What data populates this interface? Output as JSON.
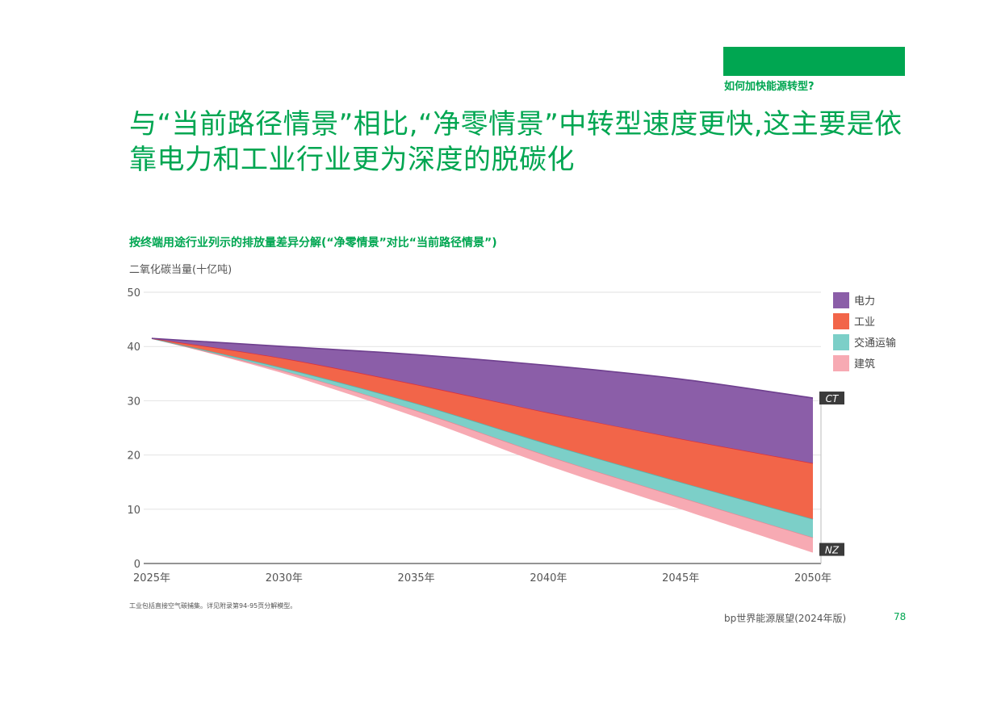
{
  "header": {
    "section_label": "如何加快能源转型?",
    "accent_color": "#00a651"
  },
  "headline": "与“当前路径情景”相比,“净零情景”中转型速度更快,这主要是依靠电力和工业行业更为深度的脱碳化",
  "chart_data": {
    "type": "area",
    "title": "按终端用途行业列示的排放量差异分解(“净零情景”对比“当前路径情景”)",
    "ylabel": "二氧化碳当量(十亿吨)",
    "xlabel": "",
    "ylim": [
      0,
      50
    ],
    "yticks": [
      0,
      10,
      20,
      30,
      40,
      50
    ],
    "x": [
      2025,
      2030,
      2035,
      2040,
      2045,
      2050
    ],
    "xtick_labels": [
      "2025年",
      "2030年",
      "2035年",
      "2040年",
      "2045年",
      "2050年"
    ],
    "grid": true,
    "legend_position": "right",
    "stacked_boundaries": {
      "CT": [
        41.5,
        40.0,
        38.5,
        36.5,
        34.0,
        30.5
      ],
      "after_power": [
        41.5,
        37.8,
        33.0,
        27.8,
        23.0,
        18.5
      ],
      "after_industry": [
        41.5,
        36.0,
        29.5,
        22.0,
        15.0,
        8.2
      ],
      "after_transport": [
        41.5,
        35.5,
        28.2,
        19.8,
        12.2,
        4.8
      ],
      "NZ": [
        41.5,
        35.0,
        27.0,
        18.0,
        10.0,
        2.0
      ]
    },
    "series": [
      {
        "name": "电力",
        "color": "#8b5ea8",
        "upper": "CT",
        "lower": "after_power"
      },
      {
        "name": "工业",
        "color": "#f26549",
        "upper": "after_power",
        "lower": "after_industry"
      },
      {
        "name": "交通运输",
        "color": "#7ccfc8",
        "upper": "after_industry",
        "lower": "after_transport"
      },
      {
        "name": "建筑",
        "color": "#f7aab3",
        "upper": "after_transport",
        "lower": "NZ"
      }
    ],
    "annotations": [
      {
        "text": "CT",
        "attach": "CT"
      },
      {
        "text": "NZ",
        "attach": "NZ"
      }
    ]
  },
  "footnote": "工业包括直接空气碳捕集。详见附录第94-95页分解模型。",
  "footer": {
    "publication": "bp世界能源展望(2024年版)",
    "page_number": "78"
  }
}
